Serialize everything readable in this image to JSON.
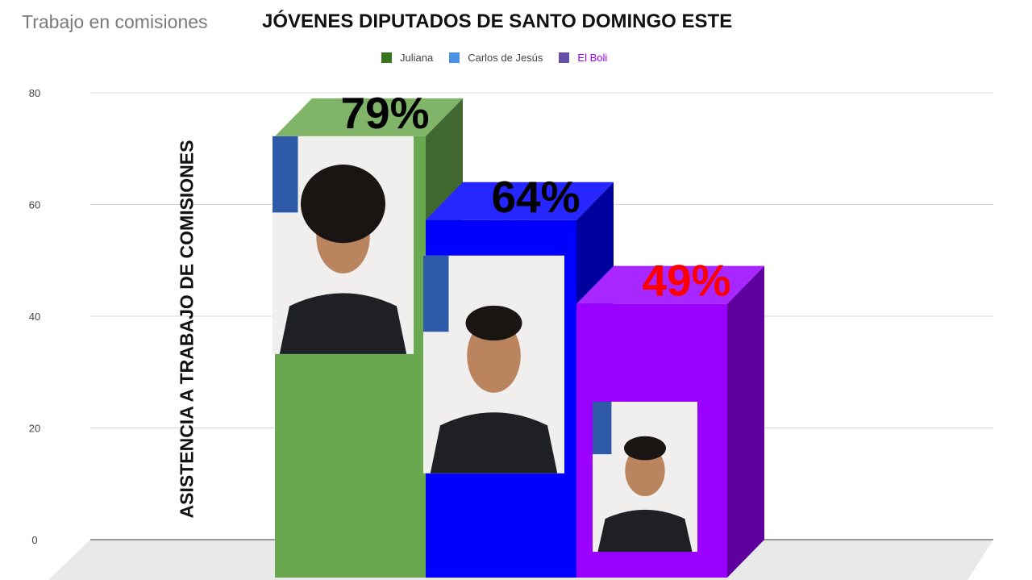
{
  "doc": {
    "title": "Trabajo en comisiones"
  },
  "chart_data": {
    "type": "bar",
    "title": "JÓVENES DIPUTADOS DE SANTO DOMINGO ESTE",
    "xlabel": "",
    "ylabel": "ASISTENCIA A TRABAJO DE COMISIONES",
    "ylim": [
      0,
      80
    ],
    "yticks": [
      0,
      20,
      40,
      60,
      80
    ],
    "grid": true,
    "legend_position": "top",
    "series": [
      {
        "name": "Juliana",
        "value": 79,
        "label": "79%",
        "color": "#6aa84f",
        "label_color": "#000000"
      },
      {
        "name": "Carlos de Jesús",
        "value": 64,
        "label": "64%",
        "color": "#0000ff",
        "label_color": "#000000"
      },
      {
        "name": "El Boli",
        "value": 49,
        "label": "49%",
        "color": "#9900ff",
        "label_color": "#ff0000"
      }
    ]
  }
}
